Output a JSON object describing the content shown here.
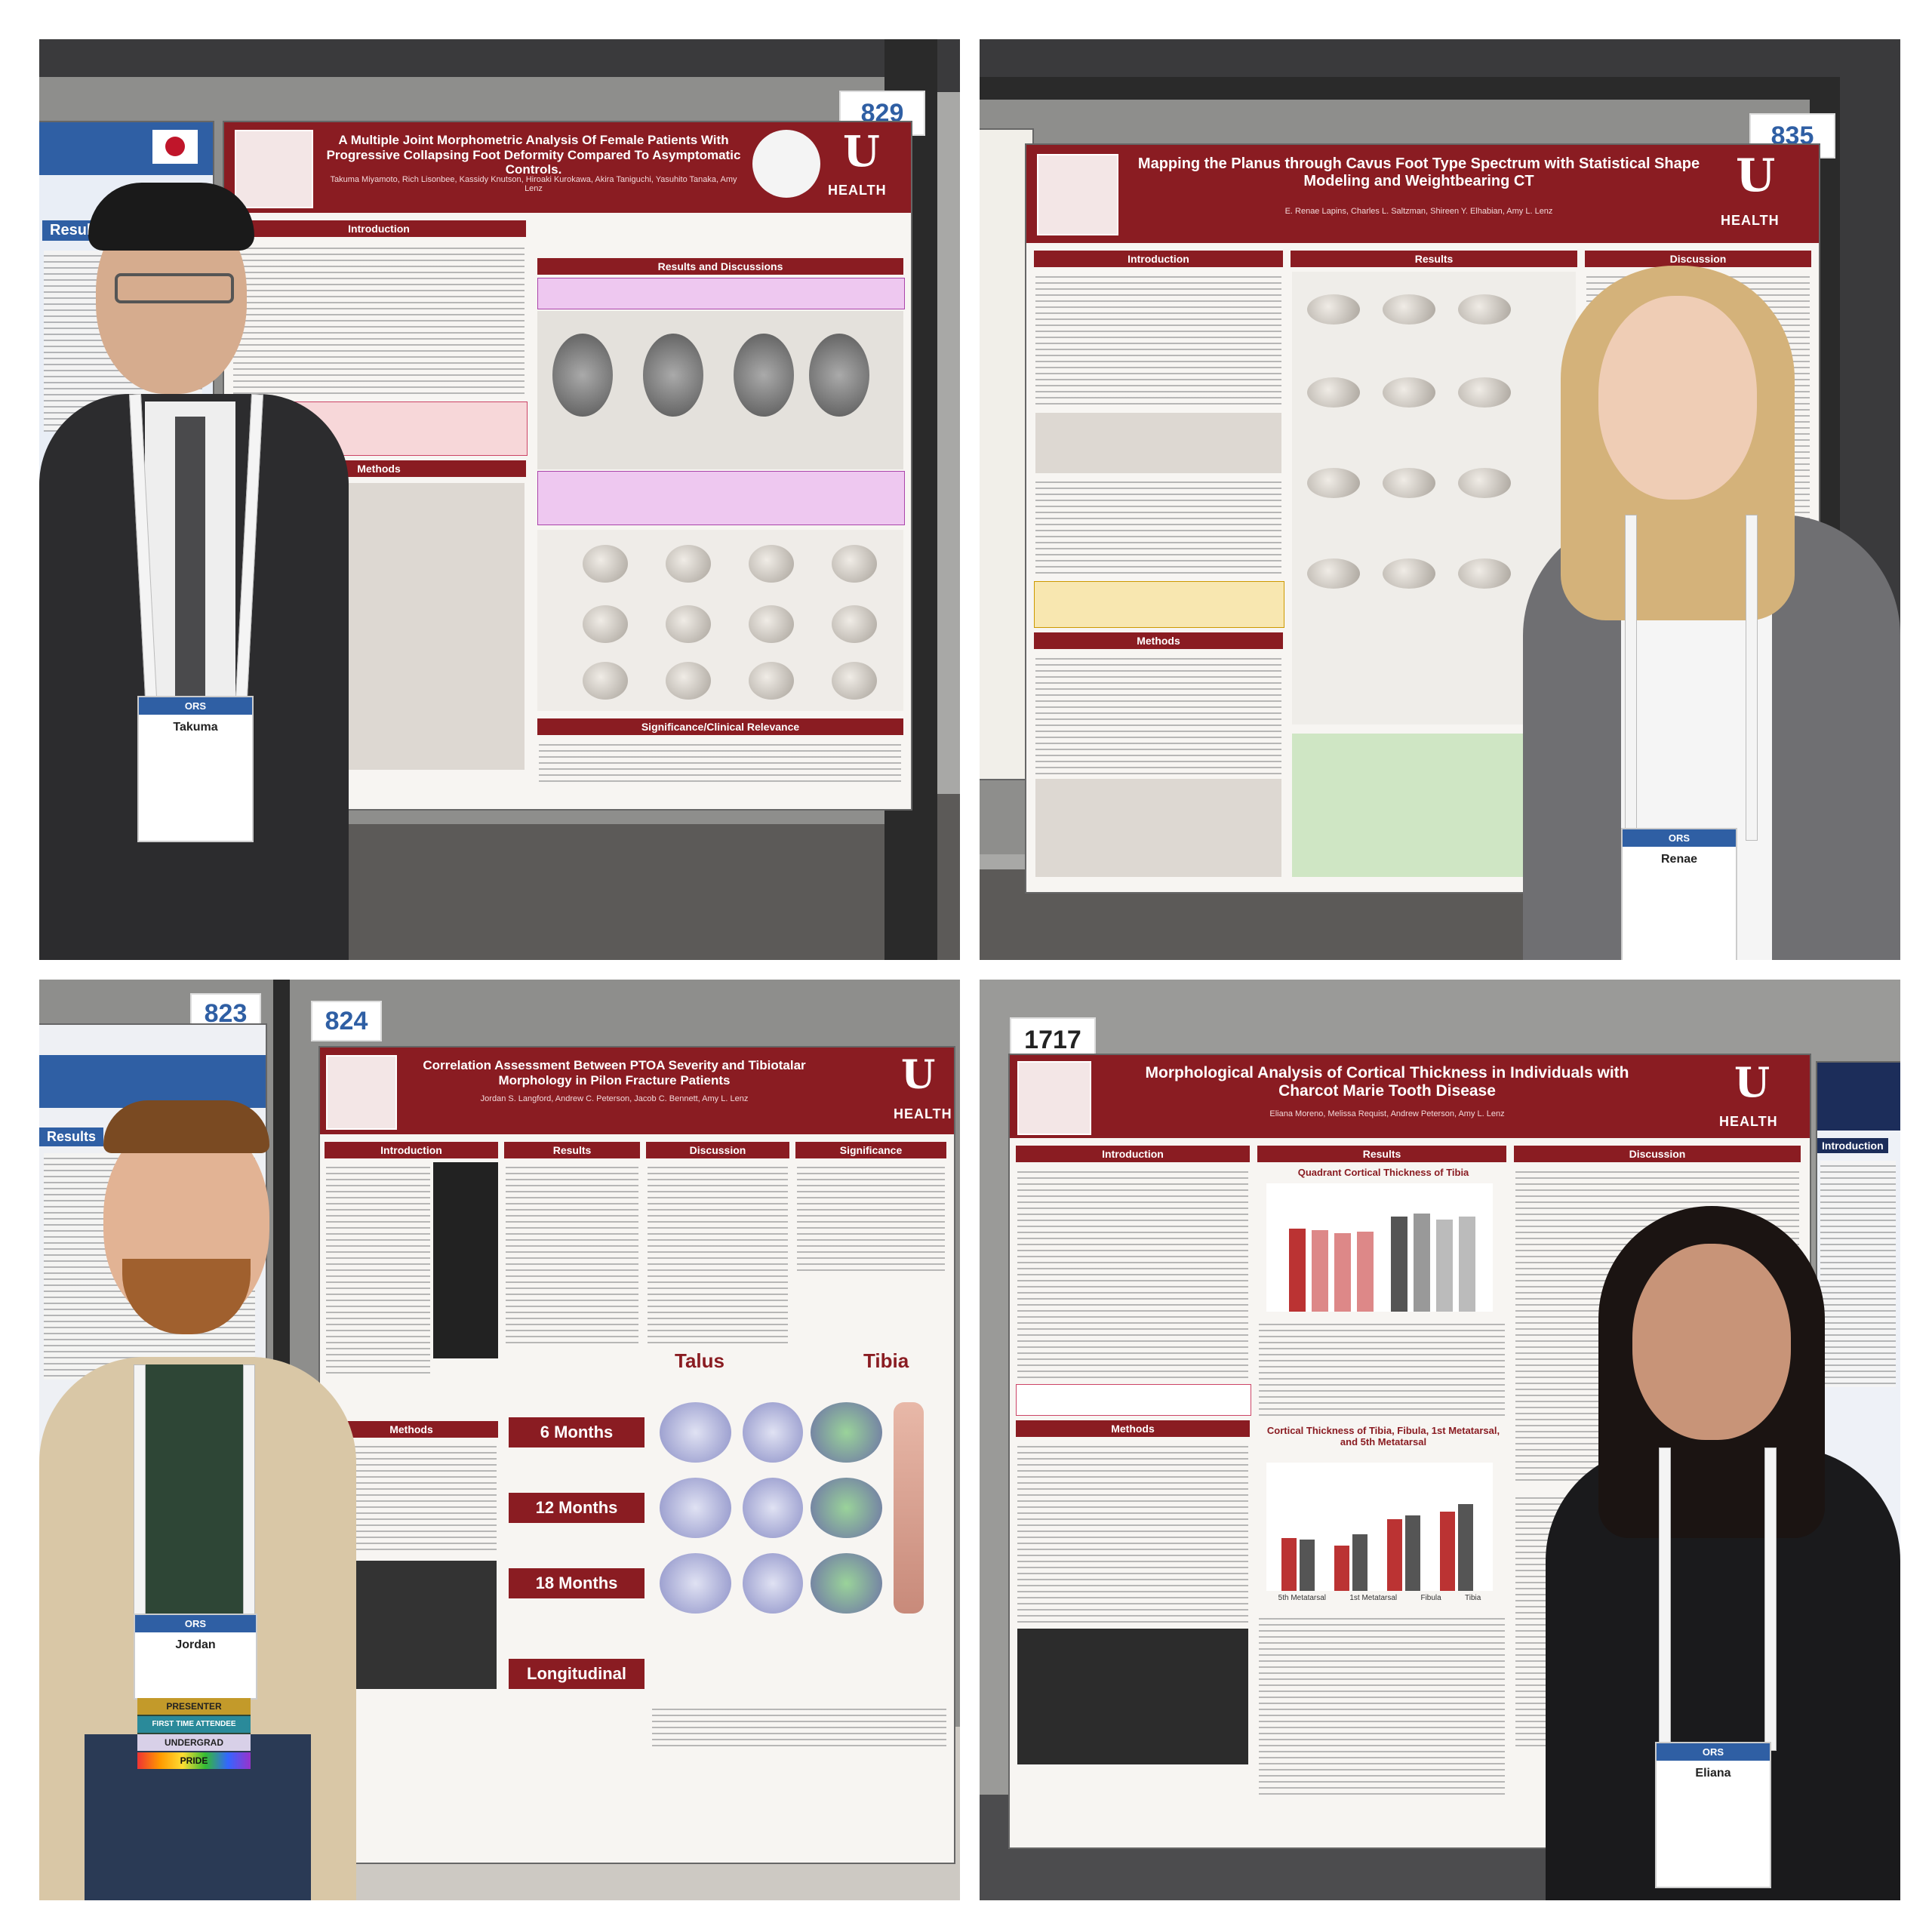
{
  "panels": [
    {
      "booth_number": "829",
      "poster_title": "A Multiple Joint Morphometric Analysis Of Female Patients With Progressive Collapsing Foot Deformity Compared To Asymptomatic Controls.",
      "authors": "Takuma Miyamoto, Rich Lisonbee, Kassidy Knutson, Hiroaki Kurokawa, Akira Taniguchi, Yasuhito Tanaka, Amy Lenz",
      "sections": [
        "Introduction",
        "Methods",
        "Results and Discussions",
        "Significance/Clinical Relevance"
      ],
      "badge_name": "Takuma",
      "badge_org": "ORS",
      "side_label": "Results"
    },
    {
      "booth_number": "835",
      "poster_title": "Mapping the Planus through Cavus Foot Type Spectrum with Statistical Shape Modeling and Weightbearing CT",
      "authors": "E. Renae Lapins, Charles L. Saltzman, Shireen Y. Elhabian, Amy L. Lenz",
      "sections": [
        "Introduction",
        "Results",
        "Discussion",
        "Methods"
      ],
      "badge_name": "Renae",
      "badge_org": "ORS"
    },
    {
      "booth_number": "824",
      "neighbor_number": "823",
      "poster_title": "Correlation Assessment Between PTOA Severity and Tibiotalar Morphology in Pilon Fracture Patients",
      "authors": "Jordan S. Langford, Andrew C. Peterson, Jacob C. Bennett, Amy L. Lenz",
      "sections": [
        "Introduction",
        "Results",
        "Discussion",
        "Significance",
        "Methods"
      ],
      "timepoints": [
        "6 Months",
        "12 Months",
        "18 Months",
        "Longitudinal"
      ],
      "regions": [
        "Talus",
        "Tibia"
      ],
      "badge_name": "Jordan",
      "badge_org": "ORS",
      "ribbons": [
        "PRESENTER",
        "FIRST TIME ATTENDEE",
        "UNDERGRAD",
        "PRIDE"
      ],
      "side_label": "Results"
    },
    {
      "booth_number": "1717",
      "poster_title": "Morphological Analysis of Cortical Thickness in Individuals with Charcot Marie Tooth Disease",
      "authors": "Eliana Moreno, Melissa Requist, Andrew Peterson, Amy L. Lenz",
      "sections": [
        "Introduction",
        "Results",
        "Discussion",
        "Methods"
      ],
      "chart_titles": [
        "Quadrant Cortical Thickness of Tibia",
        "Cortical Thickness of Tibia, Fibula, 1st Metatarsal, and 5th Metatarsal"
      ],
      "chart_categories": [
        "5th Metatarsal",
        "1st Metatarsal",
        "Fibula",
        "Tibia"
      ],
      "badge_name": "Eliana",
      "badge_org": "ORS",
      "side_label": "Introduction"
    }
  ],
  "brand": {
    "accent": "#8a1c22",
    "health_text": "HEALTH"
  }
}
